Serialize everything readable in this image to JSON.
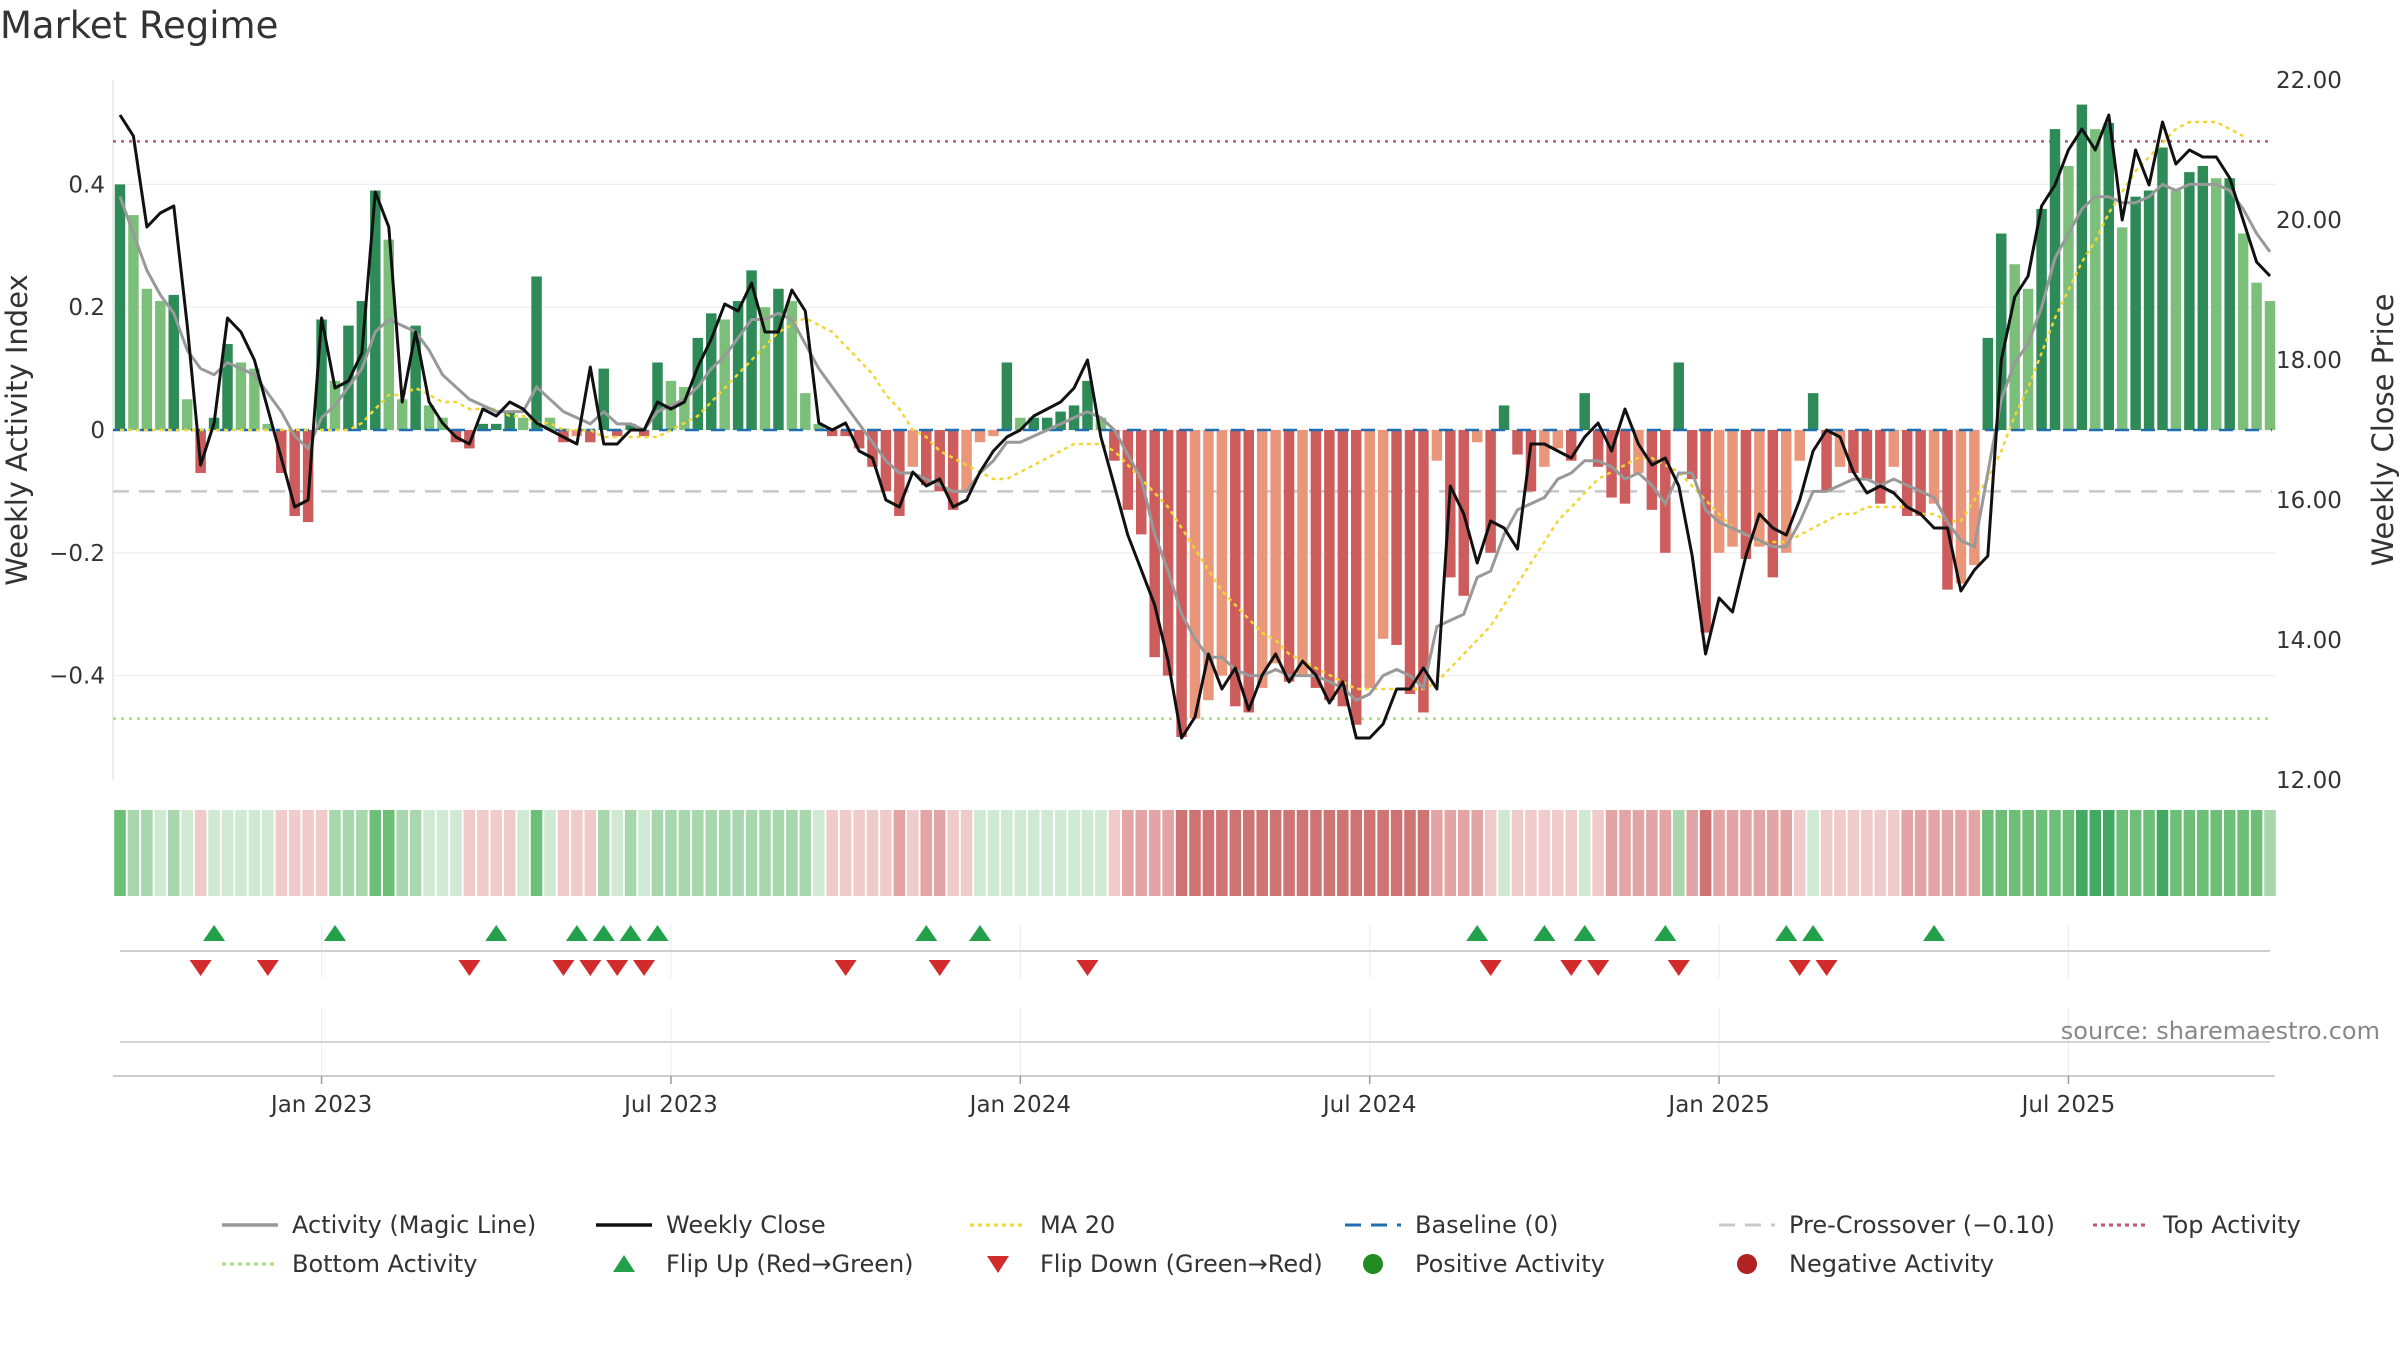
{
  "chart_data": {
    "type": "bar",
    "title": "Market Regime",
    "ylabel": "Weekly Activity Index",
    "y2label": "Weekly Close Price",
    "ylim": [
      -0.57,
      0.57
    ],
    "y2lim": [
      12.0,
      22.0
    ],
    "yticks": [
      {
        "value": 0.4,
        "label": "0.4"
      },
      {
        "value": 0.2,
        "label": "0.2"
      },
      {
        "value": 0.0,
        "label": "0"
      },
      {
        "value": -0.2,
        "label": "−0.2"
      },
      {
        "value": -0.4,
        "label": "−0.4"
      }
    ],
    "y2ticks": [
      {
        "value": 22,
        "label": "22.00"
      },
      {
        "value": 20,
        "label": "20.00"
      },
      {
        "value": 18,
        "label": "18.00"
      },
      {
        "value": 16,
        "label": "16.00"
      },
      {
        "value": 14,
        "label": "14.00"
      },
      {
        "value": 12,
        "label": "12.00"
      }
    ],
    "xticks": [
      {
        "week": 15,
        "label": "Jan 2023"
      },
      {
        "week": 41,
        "label": "Jul 2023"
      },
      {
        "week": 67,
        "label": "Jan 2024"
      },
      {
        "week": 93,
        "label": "Jul 2024"
      },
      {
        "week": 119,
        "label": "Jan 2025"
      },
      {
        "week": 145,
        "label": "Jul 2025"
      }
    ],
    "reference_lines": {
      "top_activity": 0.47,
      "bottom_activity": -0.47,
      "pre_crossover": -0.1,
      "baseline": 0.0
    },
    "activity": [
      0.4,
      0.35,
      0.23,
      0.21,
      0.22,
      0.05,
      -0.07,
      0.02,
      0.14,
      0.11,
      0.1,
      0.01,
      -0.07,
      -0.14,
      -0.15,
      0.18,
      0.08,
      0.17,
      0.21,
      0.39,
      0.31,
      0.05,
      0.17,
      0.04,
      0.02,
      -0.02,
      -0.03,
      0.01,
      0.01,
      0.03,
      0.02,
      0.25,
      0.02,
      -0.02,
      -0.01,
      -0.02,
      0.1,
      -0.01,
      0.01,
      -0.01,
      0.11,
      0.08,
      0.07,
      0.15,
      0.19,
      0.18,
      0.21,
      0.26,
      0.2,
      0.23,
      0.21,
      0.06,
      0.01,
      -0.01,
      -0.01,
      -0.03,
      -0.06,
      -0.1,
      -0.14,
      -0.06,
      -0.09,
      -0.1,
      -0.13,
      -0.1,
      -0.02,
      -0.01,
      0.11,
      0.02,
      0.02,
      0.02,
      0.03,
      0.04,
      0.08,
      0.02,
      -0.05,
      -0.13,
      -0.17,
      -0.37,
      -0.4,
      -0.5,
      -0.47,
      -0.44,
      -0.4,
      -0.45,
      -0.46,
      -0.42,
      -0.38,
      -0.41,
      -0.4,
      -0.42,
      -0.44,
      -0.45,
      -0.48,
      -0.42,
      -0.34,
      -0.35,
      -0.43,
      -0.46,
      -0.05,
      -0.24,
      -0.27,
      -0.02,
      -0.2,
      0.04,
      -0.04,
      -0.1,
      -0.06,
      -0.03,
      -0.05,
      0.06,
      -0.06,
      -0.11,
      -0.12,
      -0.07,
      -0.13,
      -0.2,
      0.11,
      -0.08,
      -0.33,
      -0.2,
      -0.19,
      -0.21,
      -0.19,
      -0.24,
      -0.2,
      -0.05,
      0.06,
      -0.1,
      -0.06,
      -0.07,
      -0.08,
      -0.12,
      -0.06,
      -0.14,
      -0.14,
      -0.12,
      -0.26,
      -0.25,
      -0.22,
      0.15,
      0.32,
      0.27,
      0.23,
      0.36,
      0.49,
      0.43,
      0.53,
      0.49,
      0.5,
      0.33,
      0.38,
      0.39,
      0.46,
      0.39,
      0.42,
      0.43,
      0.41,
      0.41,
      0.32,
      0.24,
      0.21
    ],
    "activity_line": [
      0.38,
      0.32,
      0.26,
      0.22,
      0.19,
      0.13,
      0.1,
      0.09,
      0.11,
      0.1,
      0.09,
      0.06,
      0.03,
      -0.01,
      -0.03,
      0.02,
      0.04,
      0.07,
      0.1,
      0.16,
      0.18,
      0.17,
      0.16,
      0.13,
      0.09,
      0.07,
      0.05,
      0.04,
      0.03,
      0.03,
      0.03,
      0.07,
      0.05,
      0.03,
      0.02,
      0.01,
      0.03,
      0.01,
      0.01,
      0.0,
      0.03,
      0.04,
      0.05,
      0.07,
      0.1,
      0.12,
      0.15,
      0.18,
      0.18,
      0.19,
      0.18,
      0.14,
      0.1,
      0.07,
      0.04,
      0.01,
      -0.02,
      -0.05,
      -0.07,
      -0.07,
      -0.08,
      -0.09,
      -0.1,
      -0.1,
      -0.07,
      -0.05,
      -0.02,
      -0.02,
      -0.01,
      0.0,
      0.01,
      0.02,
      0.03,
      0.02,
      0.0,
      -0.04,
      -0.08,
      -0.17,
      -0.23,
      -0.3,
      -0.34,
      -0.37,
      -0.37,
      -0.39,
      -0.4,
      -0.4,
      -0.39,
      -0.4,
      -0.4,
      -0.4,
      -0.41,
      -0.42,
      -0.44,
      -0.43,
      -0.4,
      -0.39,
      -0.4,
      -0.42,
      -0.32,
      -0.31,
      -0.3,
      -0.24,
      -0.23,
      -0.17,
      -0.13,
      -0.12,
      -0.11,
      -0.08,
      -0.07,
      -0.05,
      -0.05,
      -0.06,
      -0.08,
      -0.07,
      -0.09,
      -0.12,
      -0.07,
      -0.07,
      -0.13,
      -0.15,
      -0.16,
      -0.17,
      -0.18,
      -0.19,
      -0.19,
      -0.15,
      -0.1,
      -0.1,
      -0.09,
      -0.08,
      -0.08,
      -0.09,
      -0.08,
      -0.09,
      -0.1,
      -0.11,
      -0.15,
      -0.18,
      -0.19,
      -0.07,
      0.05,
      0.11,
      0.14,
      0.2,
      0.28,
      0.32,
      0.36,
      0.38,
      0.38,
      0.37,
      0.37,
      0.38,
      0.4,
      0.39,
      0.4,
      0.4,
      0.4,
      0.39,
      0.36,
      0.32,
      0.29
    ],
    "weekly_close": [
      21.5,
      21.2,
      19.9,
      20.1,
      20.2,
      18.5,
      16.5,
      17.1,
      18.6,
      18.4,
      18.0,
      17.3,
      16.6,
      15.9,
      16.0,
      18.6,
      17.6,
      17.7,
      18.1,
      20.4,
      19.9,
      17.4,
      18.4,
      17.4,
      17.1,
      16.9,
      16.8,
      17.3,
      17.2,
      17.4,
      17.3,
      17.1,
      17.0,
      16.9,
      16.8,
      17.9,
      16.8,
      16.8,
      17.0,
      17.0,
      17.4,
      17.3,
      17.4,
      17.9,
      18.3,
      18.8,
      18.7,
      19.1,
      18.4,
      18.4,
      19.0,
      18.7,
      17.1,
      17.0,
      17.1,
      16.7,
      16.6,
      16.0,
      15.9,
      16.4,
      16.2,
      16.3,
      15.9,
      16.0,
      16.4,
      16.7,
      16.9,
      17.0,
      17.2,
      17.3,
      17.4,
      17.6,
      18.0,
      16.9,
      16.2,
      15.5,
      15.0,
      14.5,
      13.7,
      12.6,
      12.9,
      13.8,
      13.3,
      13.6,
      13.0,
      13.5,
      13.8,
      13.4,
      13.7,
      13.5,
      13.1,
      13.4,
      12.6,
      12.6,
      12.8,
      13.3,
      13.3,
      13.6,
      13.3,
      16.2,
      15.8,
      15.1,
      15.7,
      15.6,
      15.3,
      16.8,
      16.8,
      16.7,
      16.6,
      16.9,
      17.1,
      16.7,
      17.3,
      16.8,
      16.5,
      16.6,
      16.2,
      15.2,
      13.8,
      14.6,
      14.4,
      15.2,
      15.8,
      15.6,
      15.5,
      16.0,
      16.7,
      17.0,
      16.9,
      16.4,
      16.1,
      16.2,
      16.1,
      15.9,
      15.8,
      15.6,
      15.6,
      14.7,
      15.0,
      15.2,
      18.0,
      18.9,
      19.2,
      20.2,
      20.5,
      21.0,
      21.3,
      21.0,
      21.5,
      20.0,
      21.0,
      20.5,
      21.4,
      20.8,
      21.0,
      20.9,
      20.9,
      20.6,
      20.0,
      19.4,
      19.2
    ],
    "ma20": [
      17.0,
      17.0,
      17.0,
      17.0,
      17.0,
      17.0,
      17.0,
      17.0,
      17.0,
      17.0,
      17.0,
      17.0,
      17.0,
      17.0,
      17.0,
      17.0,
      17.0,
      17.0,
      17.1,
      17.3,
      17.5,
      17.5,
      17.6,
      17.5,
      17.4,
      17.4,
      17.3,
      17.3,
      17.3,
      17.2,
      17.2,
      17.1,
      17.1,
      17.0,
      17.0,
      17.0,
      16.9,
      16.9,
      16.9,
      16.9,
      16.9,
      17.0,
      17.1,
      17.2,
      17.4,
      17.6,
      17.8,
      18.0,
      18.2,
      18.4,
      18.5,
      18.6,
      18.5,
      18.4,
      18.2,
      18.0,
      17.8,
      17.5,
      17.3,
      17.0,
      16.9,
      16.7,
      16.6,
      16.5,
      16.4,
      16.3,
      16.3,
      16.4,
      16.5,
      16.6,
      16.7,
      16.8,
      16.8,
      16.8,
      16.7,
      16.5,
      16.3,
      16.1,
      15.9,
      15.6,
      15.3,
      15.0,
      14.7,
      14.5,
      14.3,
      14.1,
      14.0,
      13.8,
      13.7,
      13.6,
      13.5,
      13.4,
      13.3,
      13.3,
      13.3,
      13.3,
      13.3,
      13.3,
      13.4,
      13.6,
      13.8,
      14.0,
      14.2,
      14.5,
      14.8,
      15.1,
      15.4,
      15.7,
      15.9,
      16.1,
      16.3,
      16.4,
      16.5,
      16.6,
      16.6,
      16.5,
      16.4,
      16.2,
      16.0,
      15.8,
      15.6,
      15.5,
      15.4,
      15.4,
      15.4,
      15.5,
      15.6,
      15.7,
      15.8,
      15.8,
      15.9,
      15.9,
      15.9,
      15.9,
      15.8,
      15.8,
      15.7,
      15.7,
      16.0,
      16.3,
      16.7,
      17.2,
      17.6,
      18.1,
      18.6,
      19.0,
      19.4,
      19.7,
      20.1,
      20.4,
      20.7,
      20.9,
      21.1,
      21.3,
      21.4,
      21.4,
      21.4,
      21.3,
      21.2
    ],
    "flip_up_weeks": [
      7,
      16,
      28,
      34,
      36,
      38,
      40,
      60,
      64,
      101,
      106,
      109,
      115,
      124,
      126,
      135
    ],
    "flip_down_weeks": [
      6,
      11,
      26,
      33,
      35,
      37,
      39,
      54,
      61,
      72,
      102,
      108,
      110,
      116,
      125,
      127
    ],
    "regime_strip_shades": [
      "G3",
      "G2",
      "G2",
      "G1",
      "G2",
      "G1",
      "R1",
      "G1",
      "G1",
      "G1",
      "G1",
      "G1",
      "R1",
      "R1",
      "R1",
      "R1",
      "G2",
      "G2",
      "G2",
      "G3",
      "G3",
      "G2",
      "G2",
      "G1",
      "G1",
      "G1",
      "R1",
      "R1",
      "R1",
      "R1",
      "G1",
      "G3",
      "G1",
      "R1",
      "R1",
      "R1",
      "G2",
      "G1",
      "G2",
      "G1",
      "G2",
      "G2",
      "G2",
      "G2",
      "G2",
      "G2",
      "G2",
      "G2",
      "G2",
      "G2",
      "G2",
      "G2",
      "G1",
      "R1",
      "R1",
      "R1",
      "R1",
      "R1",
      "R2",
      "R1",
      "R2",
      "R2",
      "R1",
      "R1",
      "G1",
      "G1",
      "G1",
      "G1",
      "G1",
      "G1",
      "G1",
      "G1",
      "G1",
      "G1",
      "R1",
      "R2",
      "R2",
      "R2",
      "R2",
      "R3",
      "R3",
      "R3",
      "R3",
      "R3",
      "R3",
      "R3",
      "R3",
      "R3",
      "R3",
      "R3",
      "R3",
      "R3",
      "R3",
      "R3",
      "R3",
      "R3",
      "R3",
      "R3",
      "R2",
      "R2",
      "R2",
      "R2",
      "R1",
      "G1",
      "R1",
      "R1",
      "R1",
      "R1",
      "R1",
      "G1",
      "R1",
      "R2",
      "R2",
      "R2",
      "R2",
      "R2",
      "G2",
      "R2",
      "R3",
      "R2",
      "R2",
      "R2",
      "R2",
      "R2",
      "R2",
      "R1",
      "G1",
      "R1",
      "R1",
      "R1",
      "R1",
      "R1",
      "R1",
      "R2",
      "R2",
      "R2",
      "R2",
      "R2",
      "R2",
      "G3",
      "G3",
      "G3",
      "G3",
      "G3",
      "G3",
      "G3",
      "G4",
      "G4",
      "G4",
      "G3",
      "G3",
      "G3",
      "G4",
      "G3",
      "G3",
      "G3",
      "G3",
      "G3",
      "G3",
      "G3",
      "G2"
    ],
    "colors": {
      "bar_green_dark": "#2e8b57",
      "bar_green_light": "#7cbf7a",
      "bar_red_dark": "#cd5c5c",
      "bar_red_light": "#e9967a",
      "activity_line": "#999999",
      "weekly_close": "#111111",
      "ma20": "#f0d634",
      "baseline": "#1f6fb0",
      "pre_crossover": "#c8c8c8",
      "top_activity": "#c0577a",
      "bottom_activity": "#a6e07a",
      "flip_up": "#22a04a",
      "flip_down": "#d22b2b",
      "positive": "#228b22",
      "negative": "#b22222",
      "strip": {
        "G1": "#cfe9d2",
        "G2": "#a8d6ad",
        "G3": "#6dbe77",
        "G4": "#42a862",
        "R1": "#efcbcb",
        "R2": "#e2a4a4",
        "R3": "#cf7474"
      }
    },
    "legend": {
      "placement": "bottom",
      "items": [
        {
          "key": "activity_line",
          "label": "Activity (Magic Line)",
          "marker": "line"
        },
        {
          "key": "weekly_close",
          "label": "Weekly Close",
          "marker": "line"
        },
        {
          "key": "ma20",
          "label": "MA 20",
          "marker": "dotted"
        },
        {
          "key": "baseline",
          "label": "Baseline (0)",
          "marker": "dashed"
        },
        {
          "key": "pre_crossover",
          "label": "Pre-Crossover (−0.10)",
          "marker": "dashed"
        },
        {
          "key": "top_activity",
          "label": "Top Activity",
          "marker": "dotted"
        },
        {
          "key": "bottom_activity",
          "label": "Bottom Activity",
          "marker": "dotted"
        },
        {
          "key": "flip_up",
          "label": "Flip Up (Red→Green)",
          "marker": "triangle-up"
        },
        {
          "key": "flip_down",
          "label": "Flip Down (Green→Red)",
          "marker": "triangle-down"
        },
        {
          "key": "positive",
          "label": "Positive Activity",
          "marker": "circle"
        },
        {
          "key": "negative",
          "label": "Negative Activity",
          "marker": "circle"
        }
      ]
    },
    "source": "source: sharemaestro.com"
  }
}
